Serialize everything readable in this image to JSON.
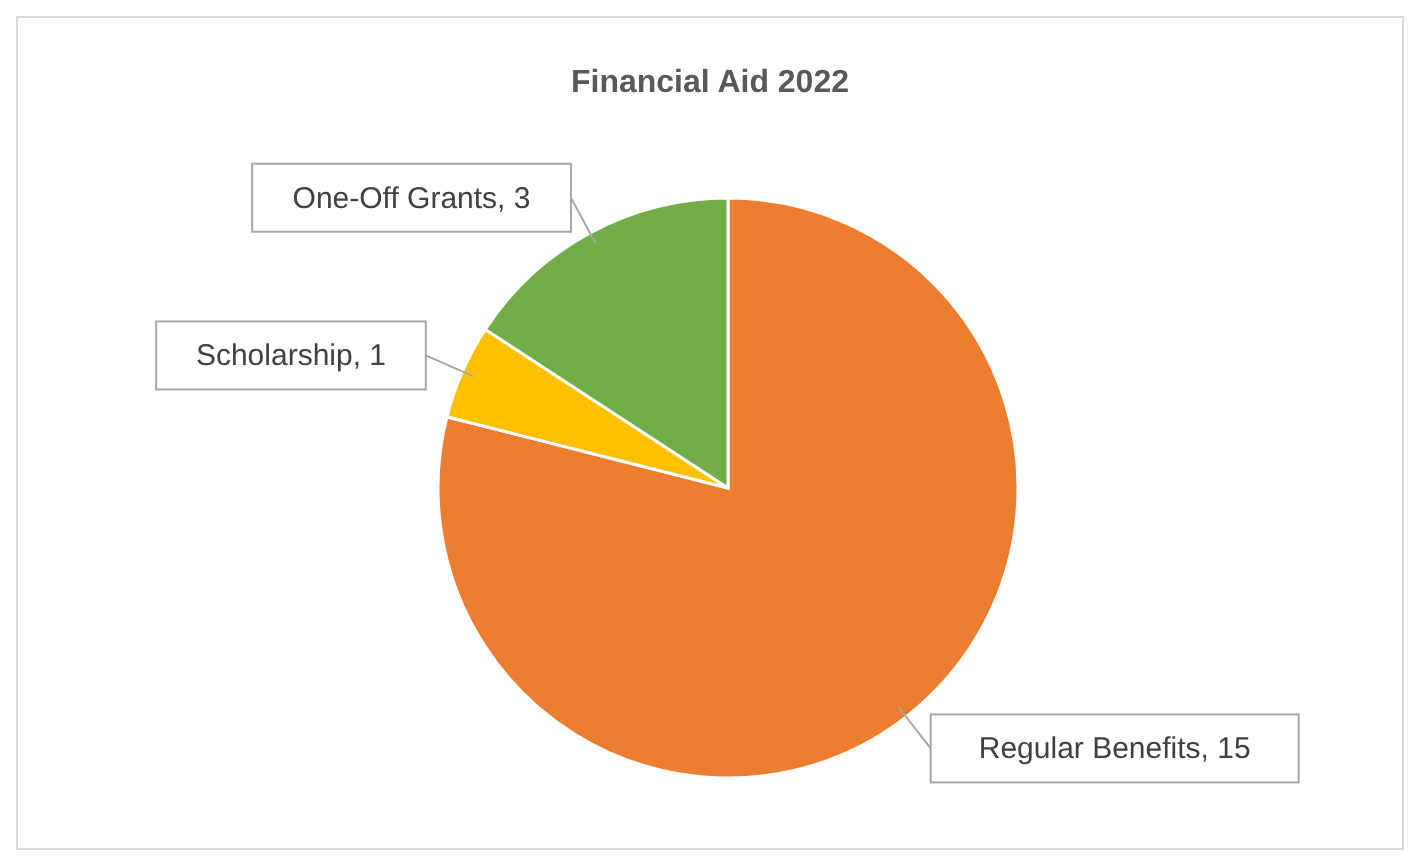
{
  "chart_data": {
    "type": "pie",
    "title": "Financial Aid 2022",
    "categories": [
      "Regular Benefits",
      "Scholarship",
      "One-Off Grants"
    ],
    "values": [
      15,
      1,
      3
    ],
    "colors": [
      "#ed7d31",
      "#ffc000",
      "#70ad47"
    ],
    "value_labels": [
      ", 15",
      ", 1",
      ", 3"
    ],
    "legend": false
  }
}
